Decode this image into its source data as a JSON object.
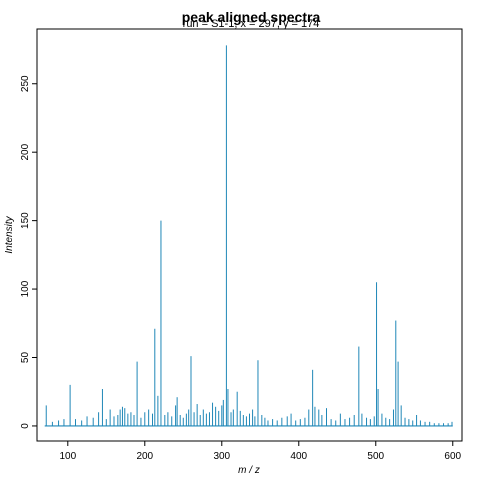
{
  "chart_data": {
    "type": "line",
    "title": "peak aligned  spectra",
    "subtitle": "run = S1-1, x = 297, y = 174",
    "xlabel": "m / z",
    "ylabel": "Intensity",
    "xlim": [
      60,
      612
    ],
    "ylim": [
      -11,
      290
    ],
    "xticks": [
      100,
      200,
      300,
      400,
      500,
      600
    ],
    "yticks": [
      0,
      50,
      100,
      150,
      200,
      250
    ],
    "grid": false,
    "line_color": "#1f87b7",
    "series": [
      {
        "x_start": 70,
        "x_end": 600,
        "baseline": 0,
        "peaks": [
          {
            "x": 72,
            "y": 15
          },
          {
            "x": 80,
            "y": 3
          },
          {
            "x": 88,
            "y": 4
          },
          {
            "x": 95,
            "y": 5
          },
          {
            "x": 103,
            "y": 30
          },
          {
            "x": 110,
            "y": 5
          },
          {
            "x": 118,
            "y": 4
          },
          {
            "x": 125,
            "y": 7
          },
          {
            "x": 133,
            "y": 6
          },
          {
            "x": 140,
            "y": 10
          },
          {
            "x": 145,
            "y": 27
          },
          {
            "x": 150,
            "y": 5
          },
          {
            "x": 155,
            "y": 12
          },
          {
            "x": 160,
            "y": 7
          },
          {
            "x": 165,
            "y": 8
          },
          {
            "x": 168,
            "y": 12
          },
          {
            "x": 171,
            "y": 14
          },
          {
            "x": 174,
            "y": 13
          },
          {
            "x": 178,
            "y": 9
          },
          {
            "x": 182,
            "y": 10
          },
          {
            "x": 186,
            "y": 8
          },
          {
            "x": 190,
            "y": 47
          },
          {
            "x": 195,
            "y": 6
          },
          {
            "x": 200,
            "y": 10
          },
          {
            "x": 205,
            "y": 12
          },
          {
            "x": 210,
            "y": 9
          },
          {
            "x": 213,
            "y": 71
          },
          {
            "x": 217,
            "y": 22
          },
          {
            "x": 221,
            "y": 150
          },
          {
            "x": 226,
            "y": 8
          },
          {
            "x": 230,
            "y": 10
          },
          {
            "x": 235,
            "y": 7
          },
          {
            "x": 240,
            "y": 15
          },
          {
            "x": 242,
            "y": 21
          },
          {
            "x": 246,
            "y": 8
          },
          {
            "x": 250,
            "y": 6
          },
          {
            "x": 254,
            "y": 9
          },
          {
            "x": 257,
            "y": 12
          },
          {
            "x": 260,
            "y": 51
          },
          {
            "x": 264,
            "y": 10
          },
          {
            "x": 268,
            "y": 16
          },
          {
            "x": 272,
            "y": 8
          },
          {
            "x": 276,
            "y": 12
          },
          {
            "x": 280,
            "y": 9
          },
          {
            "x": 284,
            "y": 10
          },
          {
            "x": 288,
            "y": 17
          },
          {
            "x": 292,
            "y": 14
          },
          {
            "x": 296,
            "y": 11
          },
          {
            "x": 300,
            "y": 15
          },
          {
            "x": 302,
            "y": 19
          },
          {
            "x": 306,
            "y": 278
          },
          {
            "x": 308,
            "y": 27
          },
          {
            "x": 312,
            "y": 10
          },
          {
            "x": 315,
            "y": 12
          },
          {
            "x": 320,
            "y": 25
          },
          {
            "x": 324,
            "y": 11
          },
          {
            "x": 328,
            "y": 8
          },
          {
            "x": 332,
            "y": 7
          },
          {
            "x": 336,
            "y": 9
          },
          {
            "x": 340,
            "y": 12
          },
          {
            "x": 343,
            "y": 7
          },
          {
            "x": 347,
            "y": 48
          },
          {
            "x": 352,
            "y": 8
          },
          {
            "x": 356,
            "y": 6
          },
          {
            "x": 360,
            "y": 4
          },
          {
            "x": 366,
            "y": 5
          },
          {
            "x": 372,
            "y": 4
          },
          {
            "x": 378,
            "y": 6
          },
          {
            "x": 385,
            "y": 7
          },
          {
            "x": 390,
            "y": 9
          },
          {
            "x": 396,
            "y": 4
          },
          {
            "x": 402,
            "y": 5
          },
          {
            "x": 408,
            "y": 6
          },
          {
            "x": 413,
            "y": 12
          },
          {
            "x": 418,
            "y": 41
          },
          {
            "x": 421,
            "y": 14
          },
          {
            "x": 426,
            "y": 12
          },
          {
            "x": 430,
            "y": 8
          },
          {
            "x": 436,
            "y": 13
          },
          {
            "x": 442,
            "y": 5
          },
          {
            "x": 448,
            "y": 4
          },
          {
            "x": 454,
            "y": 9
          },
          {
            "x": 460,
            "y": 5
          },
          {
            "x": 466,
            "y": 6
          },
          {
            "x": 472,
            "y": 8
          },
          {
            "x": 478,
            "y": 58
          },
          {
            "x": 482,
            "y": 9
          },
          {
            "x": 488,
            "y": 6
          },
          {
            "x": 493,
            "y": 5
          },
          {
            "x": 498,
            "y": 7
          },
          {
            "x": 501,
            "y": 105
          },
          {
            "x": 503,
            "y": 27
          },
          {
            "x": 508,
            "y": 9
          },
          {
            "x": 513,
            "y": 6
          },
          {
            "x": 518,
            "y": 5
          },
          {
            "x": 523,
            "y": 12
          },
          {
            "x": 526,
            "y": 77
          },
          {
            "x": 529,
            "y": 47
          },
          {
            "x": 533,
            "y": 15
          },
          {
            "x": 538,
            "y": 6
          },
          {
            "x": 543,
            "y": 5
          },
          {
            "x": 548,
            "y": 4
          },
          {
            "x": 553,
            "y": 8
          },
          {
            "x": 558,
            "y": 4
          },
          {
            "x": 564,
            "y": 3
          },
          {
            "x": 570,
            "y": 3
          },
          {
            "x": 576,
            "y": 2
          },
          {
            "x": 582,
            "y": 2
          },
          {
            "x": 588,
            "y": 2
          },
          {
            "x": 594,
            "y": 2
          },
          {
            "x": 599,
            "y": 3
          }
        ]
      }
    ]
  }
}
